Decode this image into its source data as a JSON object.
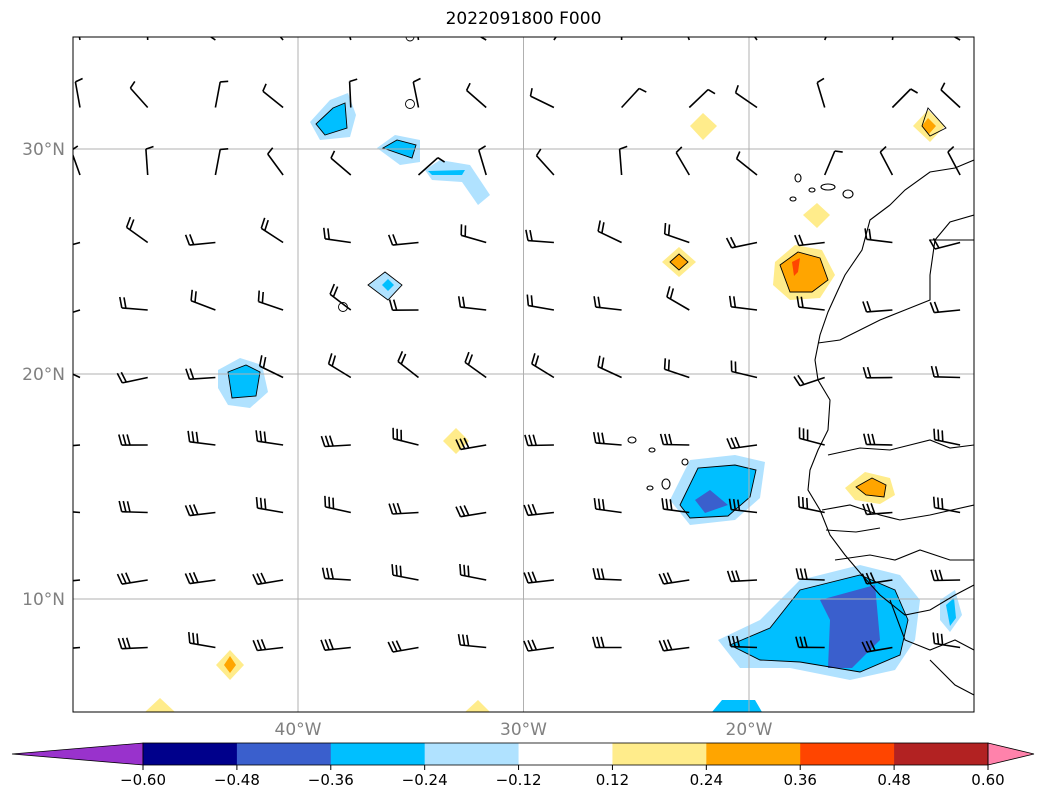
{
  "title": "2022091800 F000",
  "map": {
    "lat_labels": [
      "30°N",
      "20°N",
      "10°N"
    ],
    "lon_labels": [
      "40°W",
      "30°W",
      "20°W"
    ],
    "extent": {
      "lon": [
        -50,
        -10
      ],
      "lat": [
        5,
        35
      ]
    },
    "gridlines": true
  },
  "colorbar": {
    "orientation": "horizontal",
    "extend": "both",
    "tick_labels": [
      "−0.60",
      "−0.48",
      "−0.36",
      "−0.24",
      "−0.12",
      "0.12",
      "0.24",
      "0.36",
      "0.48",
      "0.60"
    ],
    "colors": [
      "#9932cc",
      "#00008b",
      "#3a5fcd",
      "#00bfff",
      "#b0e2ff",
      "#ffffff",
      "#ffec8b",
      "#ffa500",
      "#ff4500",
      "#b22222",
      "#ff82ab"
    ]
  }
}
